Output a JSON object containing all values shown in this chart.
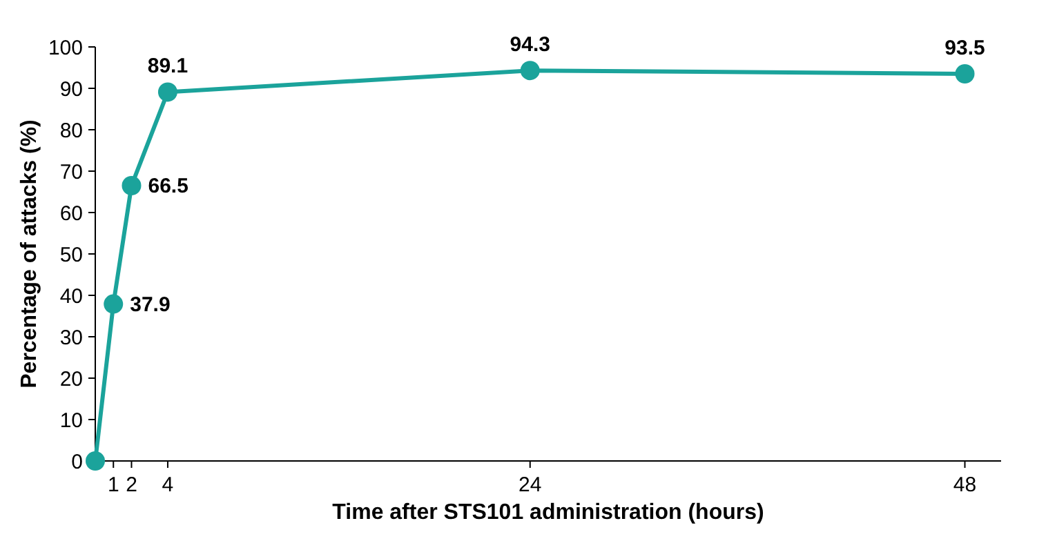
{
  "chart_data": {
    "type": "line",
    "xlabel": "Time after STS101 administration (hours)",
    "ylabel": "Percentage of attacks (%)",
    "x": [
      0,
      1,
      2,
      4,
      24,
      48
    ],
    "series": [
      {
        "color": "#1ba39b",
        "values": [
          0,
          37.9,
          66.5,
          89.1,
          94.3,
          93.5
        ],
        "value_labels": [
          null,
          "37.9",
          "66.5",
          "89.1",
          "94.3",
          "93.5"
        ]
      }
    ],
    "xlim": [
      0,
      50
    ],
    "xticks": [
      1,
      2,
      4,
      24,
      48
    ],
    "ylim": [
      0,
      100
    ],
    "yticks": [
      0,
      10,
      20,
      30,
      40,
      50,
      60,
      70,
      80,
      90,
      100
    ],
    "marker": "circle",
    "line_style": "solid"
  }
}
